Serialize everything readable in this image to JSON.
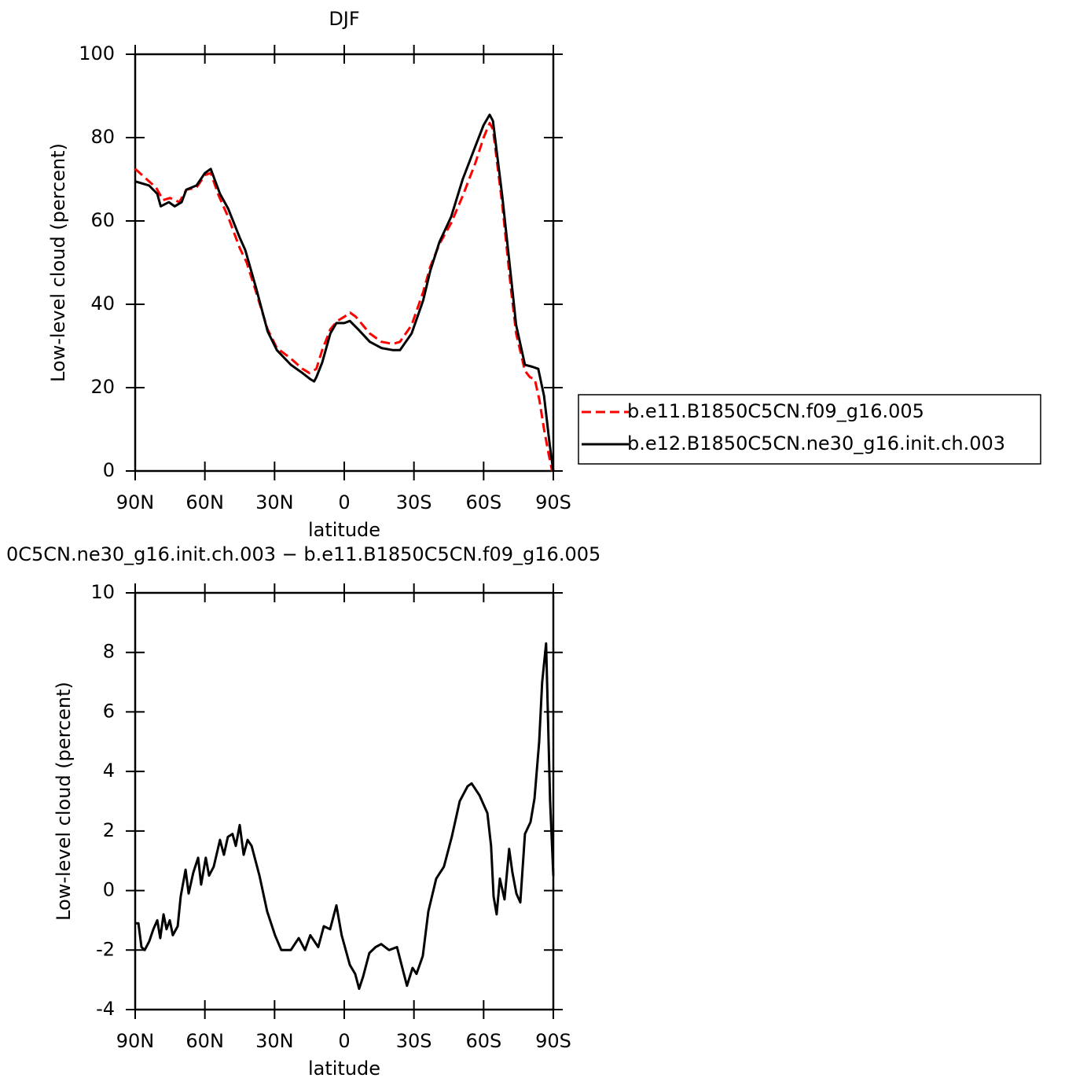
{
  "chart_data": [
    {
      "type": "line",
      "title": "DJF",
      "x_label": "latitude",
      "y_label": "Low-level cloud (percent)",
      "xlim": [
        90,
        -90
      ],
      "ylim": [
        0,
        100
      ],
      "xticks": [
        {
          "value": 90,
          "label": "90N"
        },
        {
          "value": 60,
          "label": "60N"
        },
        {
          "value": 30,
          "label": "30N"
        },
        0,
        {
          "value": -30,
          "label": "30S"
        },
        {
          "value": -60,
          "label": "60S"
        },
        {
          "value": -90,
          "label": "90S"
        }
      ],
      "yticks": [
        0,
        20,
        40,
        60,
        80,
        100
      ],
      "legend": "right",
      "series": [
        {
          "name": "b.e11.B1850C5CN.f09_g16.005",
          "color": "#ff0000",
          "line_style": "dashed",
          "x": [
            90,
            86,
            81,
            78,
            75,
            71,
            68,
            63.6,
            60,
            57.5,
            54,
            50,
            45,
            42,
            38,
            33,
            29,
            23,
            18,
            15,
            12,
            9.5,
            6,
            3,
            0,
            -2.5,
            -5,
            -8,
            -11,
            -16,
            -21,
            -24,
            -29,
            -34,
            -37,
            -41,
            -46,
            -51,
            -56.5,
            -60,
            -62.6,
            -64,
            -68,
            -71.7,
            -74,
            -77.8,
            -80,
            -82,
            -84,
            -86,
            -88,
            -89.5
          ],
          "values": [
            72.5,
            70.5,
            68,
            65,
            65.5,
            64.5,
            67.5,
            68,
            71,
            71.5,
            66,
            61,
            53.5,
            50,
            43,
            34,
            29.5,
            27,
            24.5,
            23.5,
            24.5,
            29,
            34,
            36,
            37,
            38,
            37,
            35,
            33,
            31,
            30.5,
            31,
            35,
            43,
            49,
            54.5,
            59.5,
            66,
            74,
            80,
            83.5,
            82,
            64,
            44,
            33,
            24,
            22.5,
            22,
            17,
            10,
            4,
            0
          ]
        },
        {
          "name": "b.e12.B1850C5CN.ne30_g16.init.ch.003",
          "color": "#000000",
          "line_style": "solid",
          "x": [
            90,
            84,
            80.5,
            79,
            75.5,
            73,
            70,
            68,
            63.6,
            60,
            57.5,
            53.5,
            50,
            45,
            42.6,
            38,
            33,
            29,
            23,
            18,
            14.5,
            13,
            12,
            9.5,
            6,
            3.4,
            0,
            -2.4,
            -6,
            -11,
            -16,
            -21,
            -24,
            -29,
            -34,
            -37,
            -41,
            -46,
            -51,
            -56.5,
            -60,
            -62.6,
            -64,
            -68,
            -71.7,
            -74,
            -77.8,
            -81,
            -83.5,
            -86,
            -88.5,
            -90
          ],
          "values": [
            69.5,
            68.5,
            66.5,
            63.5,
            64.5,
            63.5,
            64.5,
            67.5,
            68.5,
            71.5,
            72.5,
            66.5,
            63,
            56,
            53,
            44,
            33.5,
            29,
            25.5,
            23.5,
            22,
            21.5,
            22.5,
            26,
            33,
            35.5,
            35.5,
            36,
            34,
            31,
            29.5,
            29,
            29,
            33,
            41,
            48,
            55,
            61,
            70,
            78,
            83,
            85.5,
            84,
            66,
            47,
            35,
            25.5,
            25,
            24.5,
            18,
            6,
            0
          ]
        }
      ]
    },
    {
      "type": "line",
      "title": "0C5CN.ne30_g16.init.ch.003 − b.e11.B1850C5CN.f09_g16.005",
      "x_label": "latitude",
      "y_label": "Low-level cloud (percent)",
      "xlim": [
        90,
        -90
      ],
      "ylim": [
        -4,
        10
      ],
      "xticks": [
        {
          "value": 90,
          "label": "90N"
        },
        {
          "value": 60,
          "label": "60N"
        },
        {
          "value": 30,
          "label": "30N"
        },
        0,
        {
          "value": -30,
          "label": "30S"
        },
        {
          "value": -60,
          "label": "60S"
        },
        {
          "value": -90,
          "label": "90S"
        }
      ],
      "yticks": [
        -4,
        -2,
        0,
        2,
        4,
        6,
        8,
        10
      ],
      "series": [
        {
          "color": "#000000",
          "line_style": "solid",
          "x": [
            90,
            88.6,
            87.3,
            85.9,
            83.9,
            82.2,
            80.5,
            79.2,
            77.8,
            76.5,
            75.1,
            73.8,
            71.7,
            70.4,
            68.3,
            67,
            65,
            62.9,
            61.6,
            59.6,
            58.2,
            56.2,
            53.5,
            51.8,
            50.1,
            48.1,
            46.7,
            45,
            43.3,
            41.6,
            39.9,
            36.5,
            33.2,
            29.8,
            27.1,
            23,
            19.6,
            16.9,
            14.6,
            11.2,
            8.8,
            6.1,
            3.4,
            1.1,
            -2.4,
            -4.7,
            -6.4,
            -8.1,
            -10.8,
            -13.5,
            -15.9,
            -19.3,
            -22.7,
            -25,
            -27,
            -29.4,
            -31.1,
            -33.8,
            -36.2,
            -39.6,
            -42.9,
            -46.3,
            -49.7,
            -53.1,
            -54.8,
            -58.2,
            -61.6,
            -63.2,
            -64.3,
            -65.6,
            -67,
            -69,
            -71,
            -72.4,
            -74.1,
            -75.8,
            -77.8,
            -80.2,
            -81.9,
            -83.9,
            -85.2,
            -86.9,
            -88.6,
            -90
          ],
          "values": [
            -1.1,
            -1.1,
            -1.9,
            -2.0,
            -1.7,
            -1.3,
            -1.0,
            -1.6,
            -0.8,
            -1.3,
            -1.0,
            -1.5,
            -1.2,
            -0.2,
            0.7,
            -0.1,
            0.6,
            1.1,
            0.2,
            1.1,
            0.5,
            0.8,
            1.7,
            1.2,
            1.8,
            1.9,
            1.5,
            2.2,
            1.2,
            1.7,
            1.5,
            0.5,
            -0.7,
            -1.5,
            -2.0,
            -2.0,
            -1.6,
            -2.0,
            -1.5,
            -1.9,
            -1.2,
            -1.3,
            -0.5,
            -1.5,
            -2.5,
            -2.8,
            -3.3,
            -2.9,
            -2.1,
            -1.9,
            -1.8,
            -2.0,
            -1.9,
            -2.6,
            -3.2,
            -2.6,
            -2.8,
            -2.2,
            -0.7,
            0.4,
            0.8,
            1.8,
            3.0,
            3.5,
            3.6,
            3.2,
            2.6,
            1.5,
            -0.2,
            -0.8,
            0.4,
            -0.3,
            1.4,
            0.6,
            -0.1,
            -0.4,
            1.9,
            2.3,
            3.1,
            5.0,
            7.0,
            8.3,
            3.0,
            0.5
          ]
        }
      ]
    }
  ]
}
